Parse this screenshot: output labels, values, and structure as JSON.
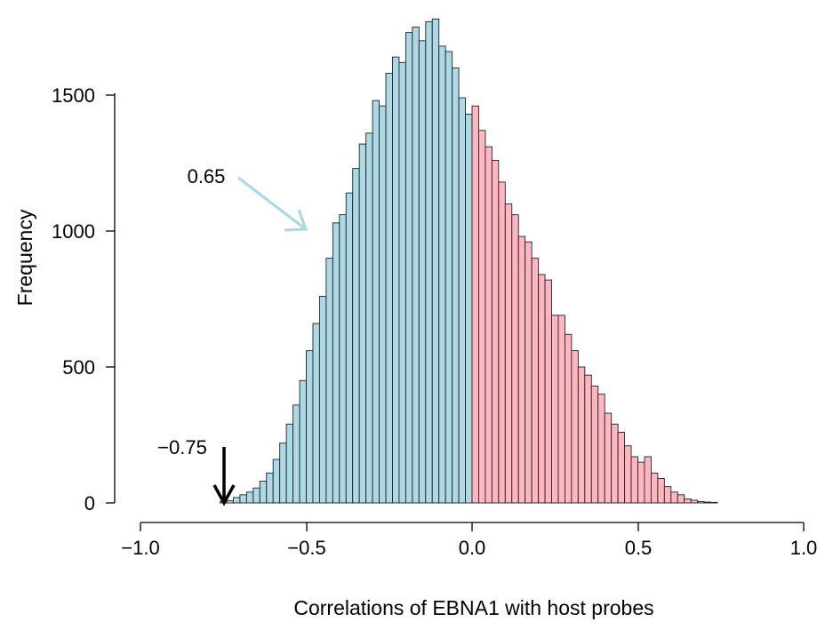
{
  "chart_data": {
    "type": "histogram",
    "title": "",
    "xlabel": "Correlations of EBNA1 with host probes",
    "ylabel": "Frequency",
    "xlim": [
      -1.0,
      1.0
    ],
    "ylim": [
      0,
      1800
    ],
    "x_ticks": [
      -1.0,
      -0.5,
      0.0,
      0.5,
      1.0
    ],
    "x_tick_labels": [
      "−1.0",
      "−0.5",
      "0.0",
      "0.5",
      "1.0"
    ],
    "y_ticks": [
      0,
      500,
      1000,
      1500
    ],
    "y_tick_labels": [
      "0",
      "500",
      "1000",
      "1500"
    ],
    "bin_width": 0.02,
    "bin_start": -0.76,
    "counts": [
      5,
      8,
      20,
      30,
      40,
      55,
      80,
      110,
      160,
      220,
      290,
      360,
      450,
      560,
      660,
      760,
      900,
      1030,
      1060,
      1140,
      1230,
      1320,
      1360,
      1480,
      1460,
      1580,
      1640,
      1620,
      1730,
      1750,
      1700,
      1770,
      1780,
      1680,
      1660,
      1600,
      1490,
      1430,
      1460,
      1370,
      1310,
      1260,
      1180,
      1100,
      1060,
      980,
      960,
      900,
      840,
      820,
      690,
      690,
      620,
      560,
      500,
      470,
      430,
      400,
      330,
      290,
      260,
      210,
      170,
      150,
      170,
      110,
      90,
      60,
      40,
      30,
      15,
      10,
      5,
      3,
      2
    ],
    "split_value": 0.0,
    "colors": {
      "negative": "#add8e6",
      "positive": "#ffb6c1",
      "annotation_arrow_light": "#a8d8e8",
      "annotation_arrow_dark": "#000000"
    },
    "annotations": [
      {
        "text": "0.65",
        "arrow": "light-blue"
      },
      {
        "text": "−0.75",
        "arrow": "black-down",
        "points_to_x": -0.75
      }
    ]
  }
}
